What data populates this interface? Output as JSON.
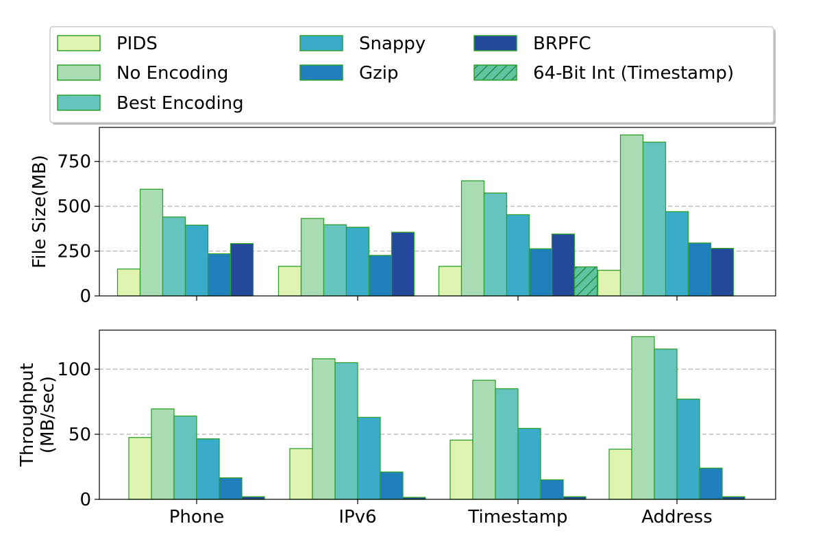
{
  "chart_data": [
    {
      "type": "bar",
      "title": "",
      "xlabel": "",
      "ylabel": "File Size(MB)",
      "ylim": [
        0,
        940
      ],
      "yticks": [
        0,
        250,
        500,
        750
      ],
      "grid": "y-dashed",
      "categories": [
        "Phone",
        "IPv6",
        "Timestamp",
        "Address"
      ],
      "show_xtick_labels": false,
      "series": [
        {
          "name": "PIDS",
          "color": "#e0f3b0",
          "values": [
            150,
            165,
            165,
            143
          ]
        },
        {
          "name": "No Encoding",
          "color": "#a9dcb3",
          "values": [
            595,
            432,
            642,
            898
          ]
        },
        {
          "name": "Best Encoding",
          "color": "#66c4bf",
          "values": [
            440,
            397,
            574,
            858
          ]
        },
        {
          "name": "Snappy",
          "color": "#3aabc9",
          "values": [
            395,
            383,
            453,
            470
          ]
        },
        {
          "name": "Gzip",
          "color": "#2080bc",
          "values": [
            235,
            226,
            263,
            295
          ]
        },
        {
          "name": "BRPFC",
          "color": "#24499c",
          "values": [
            292,
            355,
            345,
            265
          ]
        },
        {
          "name": "64-Bit Int (Timestamp)",
          "color": "#5fc4a0",
          "hatch": true,
          "values": [
            null,
            null,
            162,
            null
          ]
        }
      ]
    },
    {
      "type": "bar",
      "title": "",
      "xlabel": "",
      "ylabel": [
        "Throughput",
        "(MB/sec)"
      ],
      "ylim": [
        0,
        130
      ],
      "yticks": [
        0,
        50,
        100
      ],
      "grid": "y-dashed",
      "categories": [
        "Phone",
        "IPv6",
        "Timestamp",
        "Address"
      ],
      "show_xtick_labels": true,
      "series": [
        {
          "name": "PIDS",
          "color": "#e0f3b0",
          "values": [
            47.5,
            39,
            45.5,
            38.5
          ]
        },
        {
          "name": "No Encoding",
          "color": "#a9dcb3",
          "values": [
            69.5,
            108,
            91.5,
            125
          ]
        },
        {
          "name": "Best Encoding",
          "color": "#66c4bf",
          "values": [
            64,
            105,
            85,
            115.5
          ]
        },
        {
          "name": "Snappy",
          "color": "#3aabc9",
          "values": [
            46.5,
            63,
            54.5,
            77
          ]
        },
        {
          "name": "Gzip",
          "color": "#2080bc",
          "values": [
            16.5,
            21,
            15,
            24
          ]
        },
        {
          "name": "BRPFC",
          "color": "#24499c",
          "values": [
            2,
            1.5,
            2,
            2
          ]
        }
      ]
    }
  ],
  "legend": {
    "placement": "top",
    "columns": [
      [
        "PIDS",
        "No Encoding",
        "Best Encoding"
      ],
      [
        "Snappy",
        "Gzip"
      ],
      [
        "BRPFC",
        "64-Bit Int (Timestamp)"
      ]
    ]
  }
}
